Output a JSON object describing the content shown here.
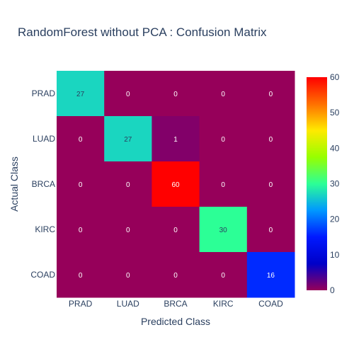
{
  "chart_data": {
    "type": "heatmap",
    "title": "RandomForest without PCA : Confusion Matrix",
    "xlabel": "Predicted Class",
    "ylabel": "Actual Class",
    "x_categories": [
      "PRAD",
      "LUAD",
      "BRCA",
      "KIRC",
      "COAD"
    ],
    "y_categories": [
      "PRAD",
      "LUAD",
      "BRCA",
      "KIRC",
      "COAD"
    ],
    "z": [
      [
        27,
        0,
        0,
        0,
        0
      ],
      [
        0,
        27,
        1,
        0,
        0
      ],
      [
        0,
        0,
        60,
        0,
        0
      ],
      [
        0,
        0,
        0,
        30,
        0
      ],
      [
        0,
        0,
        0,
        0,
        16
      ]
    ],
    "colorscale": "rainbow",
    "zrange": [
      0,
      60
    ],
    "colorbar_ticks": [
      0,
      10,
      20,
      30,
      40,
      50,
      60
    ],
    "grid": false
  }
}
